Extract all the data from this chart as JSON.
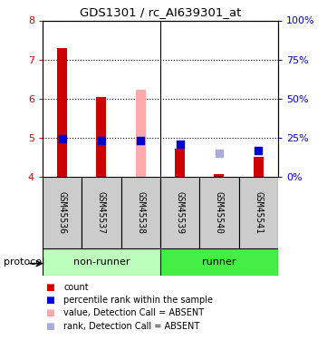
{
  "title": "GDS1301 / rc_AI639301_at",
  "samples": [
    "GSM45536",
    "GSM45537",
    "GSM45538",
    "GSM45539",
    "GSM45540",
    "GSM45541"
  ],
  "ylim_left": [
    4,
    8
  ],
  "yticks_left": [
    4,
    5,
    6,
    7,
    8
  ],
  "yticks_right": [
    0,
    25,
    50,
    75,
    100
  ],
  "ytick_labels_right": [
    "0%",
    "25%",
    "50%",
    "75%",
    "100%"
  ],
  "red_bar_bottom": 4.0,
  "red_bars": [
    7.3,
    6.05,
    null,
    4.72,
    4.06,
    4.5
  ],
  "pink_bars": [
    null,
    null,
    6.22,
    null,
    null,
    null
  ],
  "blue_squares_y": [
    4.97,
    4.93,
    4.93,
    4.83,
    null,
    4.67
  ],
  "light_blue_squares_y": [
    null,
    null,
    null,
    null,
    4.6,
    null
  ],
  "bar_color_red": "#cc0000",
  "bar_color_pink": "#ffaaaa",
  "square_color_blue": "#0000cc",
  "square_color_light_blue": "#aaaadd",
  "nonrunner_color": "#bbffbb",
  "runner_color": "#44ee44",
  "left_axis_color": "#cc0000",
  "right_axis_color": "#0000cc",
  "legend": [
    {
      "label": "count",
      "color": "#cc0000"
    },
    {
      "label": "percentile rank within the sample",
      "color": "#0000cc"
    },
    {
      "label": "value, Detection Call = ABSENT",
      "color": "#ffaaaa"
    },
    {
      "label": "rank, Detection Call = ABSENT",
      "color": "#aaaadd"
    }
  ]
}
